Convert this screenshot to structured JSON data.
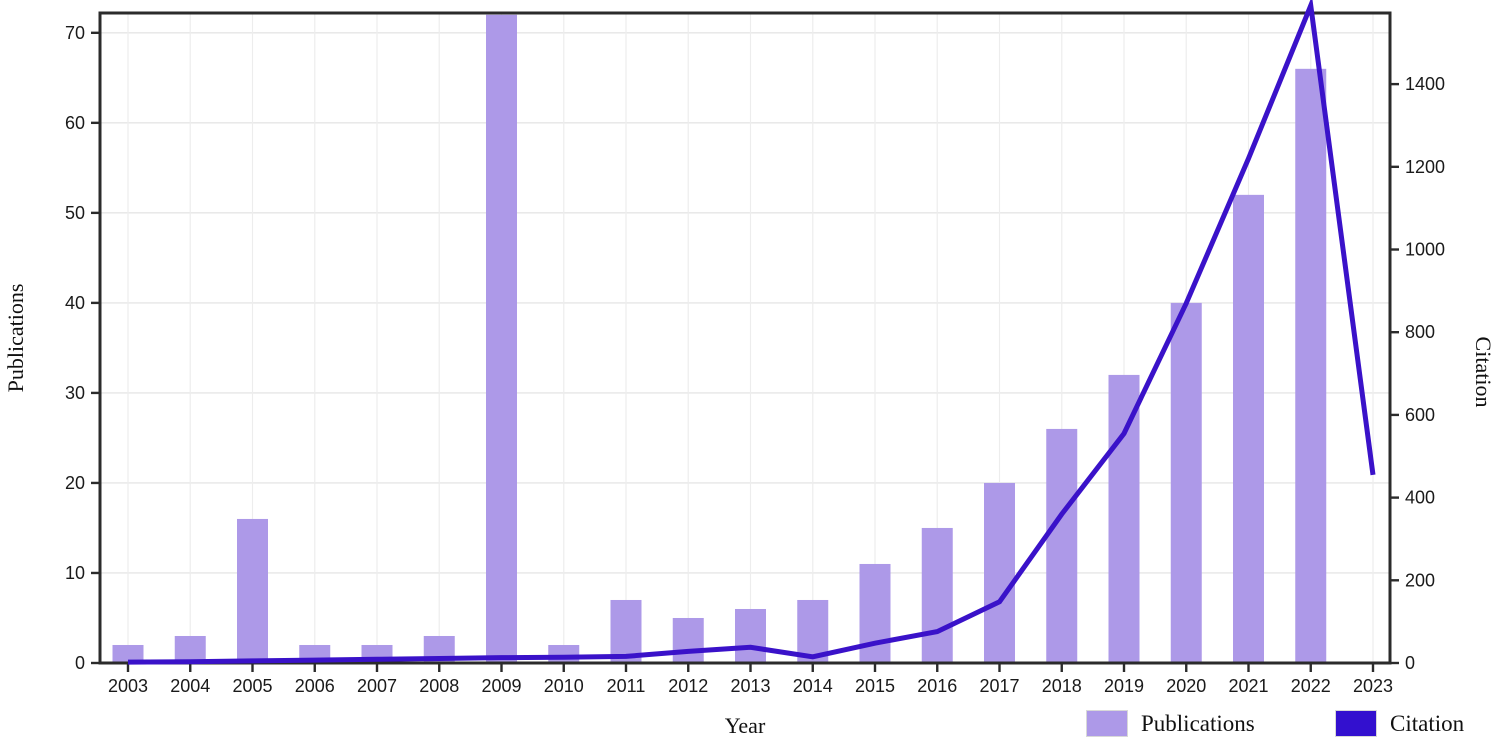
{
  "figure": {
    "xlabel": "Year",
    "ylabel_left": "Publications",
    "ylabel_right": "Citation"
  },
  "colors": {
    "bar_fill": "#ad99e8",
    "line_stroke": "#3a12c9",
    "legend_citation_swatch": "#3310cf",
    "frame": "#2b2b2b",
    "gridline": "#e6e6e6",
    "tick_label": "#1a1a1a"
  },
  "chart_data": {
    "type": "bar",
    "subtype": "combo-bar-line-dual-axis",
    "title": "",
    "xlabel": "Year",
    "categories": [
      "2003",
      "2004",
      "2005",
      "2006",
      "2007",
      "2008",
      "2009",
      "2010",
      "2011",
      "2012",
      "2013",
      "2014",
      "2015",
      "2016",
      "2017",
      "2018",
      "2019",
      "2020",
      "2021",
      "2022",
      "2023"
    ],
    "series": [
      {
        "name": "Publications",
        "type": "bar",
        "axis": "left",
        "color": "#ad99e8",
        "values": [
          2,
          3,
          16,
          2,
          2,
          3,
          72,
          2,
          7,
          5,
          6,
          7,
          11,
          15,
          20,
          26,
          32,
          40,
          52,
          66,
          0
        ]
      },
      {
        "name": "Citation",
        "type": "line",
        "axis": "right",
        "color": "#3a12c9",
        "values": [
          2,
          3,
          5,
          7,
          9,
          11,
          13,
          14,
          16,
          28,
          38,
          15,
          48,
          76,
          148,
          360,
          555,
          870,
          1220,
          1590,
          455
        ]
      }
    ],
    "left_axis": {
      "label": "Publications",
      "ticks": [
        0,
        10,
        20,
        30,
        40,
        50,
        60,
        70
      ],
      "range": [
        0,
        72.2
      ]
    },
    "right_axis": {
      "label": "Citation",
      "ticks": [
        0,
        200,
        400,
        600,
        800,
        1000,
        1200,
        1400
      ],
      "range": [
        0,
        1572
      ]
    },
    "grid": true,
    "legend_position": "bottom-right",
    "legend": [
      "Publications",
      "Citation"
    ],
    "notes": "2009 bar reaches plot top (clipped at axis max); citation line peak at 2022 slightly exceeds plot top; no bar drawn for 2023."
  }
}
